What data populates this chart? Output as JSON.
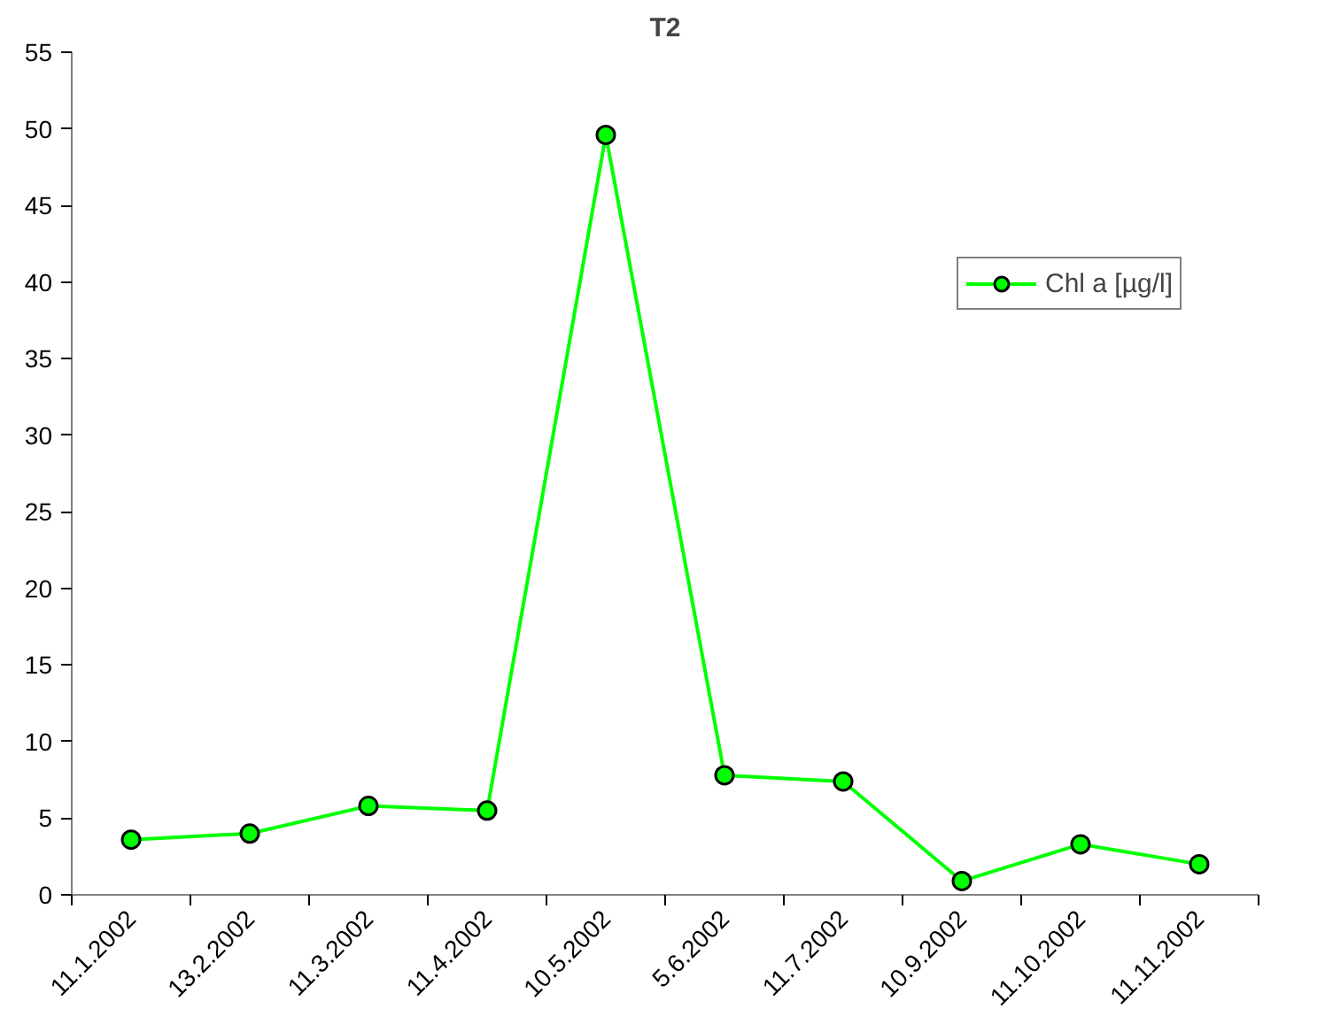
{
  "chart_data": {
    "type": "line",
    "title": "T2",
    "categories": [
      "11.1.2002",
      "13.2.2002",
      "11.3.2002",
      "11.4.2002",
      "10.5.2002",
      "5.6.2002",
      "11.7.2002",
      "10.9.2002",
      "11.10.2002",
      "11.11.2002"
    ],
    "series": [
      {
        "name": "Chl a [µg/l]",
        "color": "#00ff00",
        "values": [
          3.6,
          4.0,
          5.8,
          5.5,
          49.6,
          7.8,
          7.4,
          0.9,
          3.3,
          2.0
        ]
      }
    ],
    "ylim": [
      0,
      55
    ],
    "yticks": [
      0,
      5,
      10,
      15,
      20,
      25,
      30,
      35,
      40,
      45,
      50,
      55
    ],
    "grid": false,
    "legend": "right",
    "marker": "circle",
    "line_style": "solid"
  }
}
